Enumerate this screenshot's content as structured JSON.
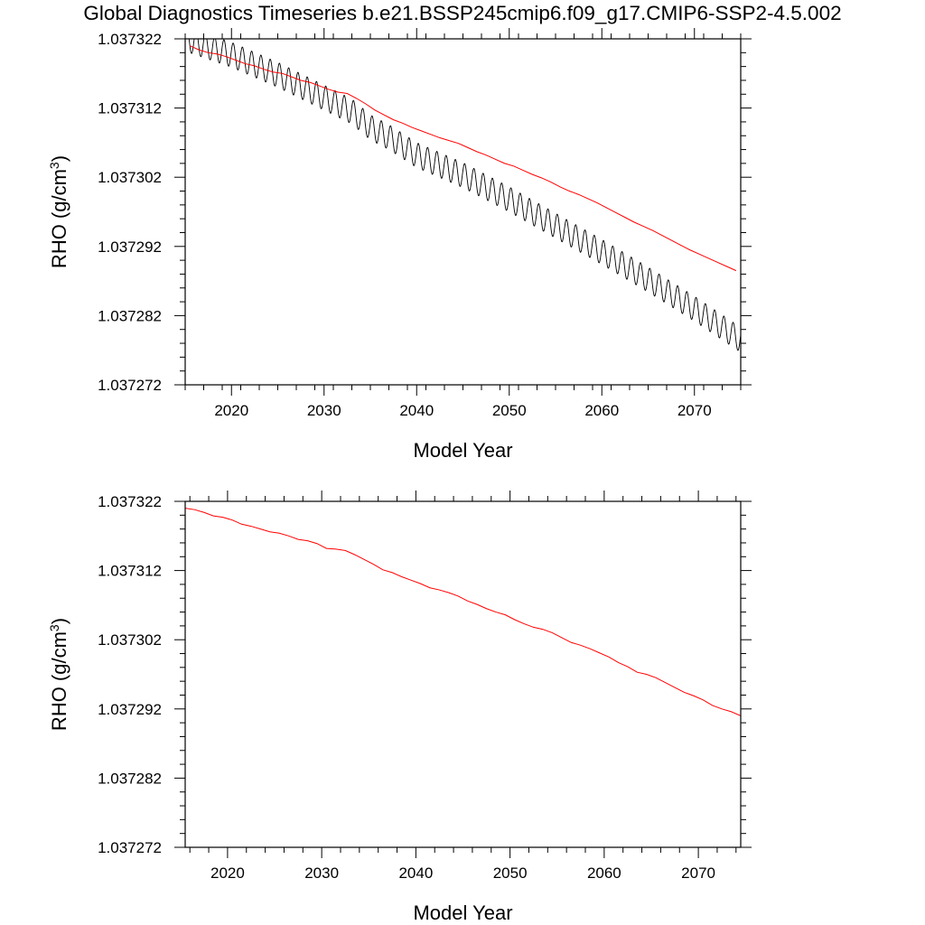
{
  "title": "Global Diagnostics Timeseries b.e21.BSSP245cmip6.f09_g17.CMIP6-SSP2-4.5.002",
  "colors": {
    "monthly": "#000000",
    "annual": "#ff0000",
    "axes": "#000000"
  },
  "chart_data": [
    {
      "type": "line",
      "xlabel": "Model Year",
      "ylabel": "RHO (g/cm",
      "ylabel_sup": "3",
      "ylabel_close": ")",
      "xlim": [
        2015,
        2075
      ],
      "ylim": [
        1.037272,
        1.037322
      ],
      "xticks": [
        "2020",
        "2030",
        "2040",
        "2050",
        "2060",
        "2070"
      ],
      "yticks": [
        "1.037322",
        "1.037312",
        "1.037302",
        "1.037292",
        "1.037282",
        "1.037272"
      ],
      "series": [
        {
          "color": "#000000",
          "kind": "monthly",
          "seasonal_amplitude": 1.8e-06,
          "trend_x": [
            2015.0,
            2020,
            2025,
            2030,
            2033,
            2035,
            2037,
            2040,
            2045,
            2050,
            2055,
            2060,
            2065,
            2070,
            2075.0
          ],
          "trend_y": [
            1.037322,
            1.0373197,
            1.0373168,
            1.0373135,
            1.0373115,
            1.0373092,
            1.0373078,
            1.0373052,
            1.0373023,
            1.0372988,
            1.037295,
            1.0372912,
            1.0372872,
            1.037283,
            1.0372785
          ]
        },
        {
          "color": "#ff0000",
          "kind": "annual",
          "x": [
            2015.5,
            2016.5,
            2017.5,
            2018.5,
            2019.5,
            2020.5,
            2021.5,
            2022.5,
            2023.5,
            2024.5,
            2025.5,
            2026.5,
            2027.5,
            2028.5,
            2029.5,
            2030.5,
            2031.5,
            2032.5,
            2033.5,
            2034.5,
            2035.5,
            2036.5,
            2037.5,
            2038.5,
            2039.5,
            2040.5,
            2041.5,
            2042.5,
            2043.5,
            2044.5,
            2045.5,
            2046.5,
            2047.5,
            2048.5,
            2049.5,
            2050.5,
            2051.5,
            2052.5,
            2053.5,
            2054.5,
            2055.5,
            2056.5,
            2057.5,
            2058.5,
            2059.5,
            2060.5,
            2061.5,
            2062.5,
            2063.5,
            2064.5,
            2065.5,
            2066.5,
            2067.5,
            2068.5,
            2069.5,
            2070.5,
            2071.5,
            2072.5,
            2073.5,
            2074.5
          ],
          "y": [
            1.037321,
            1.0373204,
            1.03732,
            1.0373198,
            1.0373194,
            1.0373189,
            1.0373184,
            1.0373181,
            1.0373176,
            1.0373172,
            1.037317,
            1.0373165,
            1.037316,
            1.0373157,
            1.0373152,
            1.0373147,
            1.0373143,
            1.0373141,
            1.0373134,
            1.0373126,
            1.0373117,
            1.037311,
            1.0373103,
            1.0373098,
            1.0373092,
            1.0373087,
            1.0373082,
            1.0373077,
            1.0373073,
            1.0373069,
            1.0373063,
            1.0373057,
            1.0373052,
            1.0373046,
            1.037304,
            1.0373036,
            1.037303,
            1.0373024,
            1.0373019,
            1.0373013,
            1.0373006,
            1.0373,
            1.0372995,
            1.0372989,
            1.0372983,
            1.0372976,
            1.0372969,
            1.0372962,
            1.0372955,
            1.0372949,
            1.0372943,
            1.0372936,
            1.0372929,
            1.0372922,
            1.0372915,
            1.0372909,
            1.0372903,
            1.0372897,
            1.0372891,
            1.0372885
          ]
        }
      ]
    },
    {
      "type": "line",
      "xlabel": "Model Year",
      "ylabel": "RHO (g/cm",
      "ylabel_sup": "3",
      "ylabel_close": ")",
      "xlim": [
        2015.5,
        2074.5
      ],
      "ylim": [
        1.037272,
        1.037322
      ],
      "xticks": [
        "2020",
        "2030",
        "2040",
        "2050",
        "2060",
        "2070"
      ],
      "yticks": [
        "1.037322",
        "1.037312",
        "1.037302",
        "1.037292",
        "1.037282",
        "1.037272"
      ],
      "series": [
        {
          "color": "#ff0000",
          "kind": "annual",
          "x": [
            2015.5,
            2016.5,
            2017.5,
            2018.5,
            2019.5,
            2020.5,
            2021.5,
            2022.5,
            2023.5,
            2024.5,
            2025.5,
            2026.5,
            2027.5,
            2028.5,
            2029.5,
            2030.5,
            2031.5,
            2032.5,
            2033.5,
            2034.5,
            2035.5,
            2036.5,
            2037.5,
            2038.5,
            2039.5,
            2040.5,
            2041.5,
            2042.5,
            2043.5,
            2044.5,
            2045.5,
            2046.5,
            2047.5,
            2048.5,
            2049.5,
            2050.5,
            2051.5,
            2052.5,
            2053.5,
            2054.5,
            2055.5,
            2056.5,
            2057.5,
            2058.5,
            2059.5,
            2060.5,
            2061.5,
            2062.5,
            2063.5,
            2064.5,
            2065.5,
            2066.5,
            2067.5,
            2068.5,
            2069.5,
            2070.5,
            2071.5,
            2072.5,
            2073.5,
            2074.5
          ],
          "y": [
            1.037321,
            1.0373208,
            1.0373204,
            1.0373199,
            1.0373197,
            1.0373193,
            1.0373187,
            1.0373184,
            1.037318,
            1.0373176,
            1.0373174,
            1.037317,
            1.0373165,
            1.0373163,
            1.0373159,
            1.0373152,
            1.0373151,
            1.0373149,
            1.0373143,
            1.0373136,
            1.0373129,
            1.0373121,
            1.0373117,
            1.0373111,
            1.0373106,
            1.0373101,
            1.0373095,
            1.0373092,
            1.0373088,
            1.0373083,
            1.0373076,
            1.0373071,
            1.0373065,
            1.037306,
            1.0373056,
            1.0373049,
            1.0373043,
            1.0373038,
            1.0373035,
            1.037303,
            1.0373023,
            1.0373016,
            1.0373012,
            1.0373007,
            1.0373001,
            1.0372995,
            1.0372987,
            1.0372981,
            1.0372973,
            1.037297,
            1.0372965,
            1.0372958,
            1.0372951,
            1.0372944,
            1.0372939,
            1.0372933,
            1.0372925,
            1.037292,
            1.0372916,
            1.037291
          ]
        }
      ]
    }
  ]
}
